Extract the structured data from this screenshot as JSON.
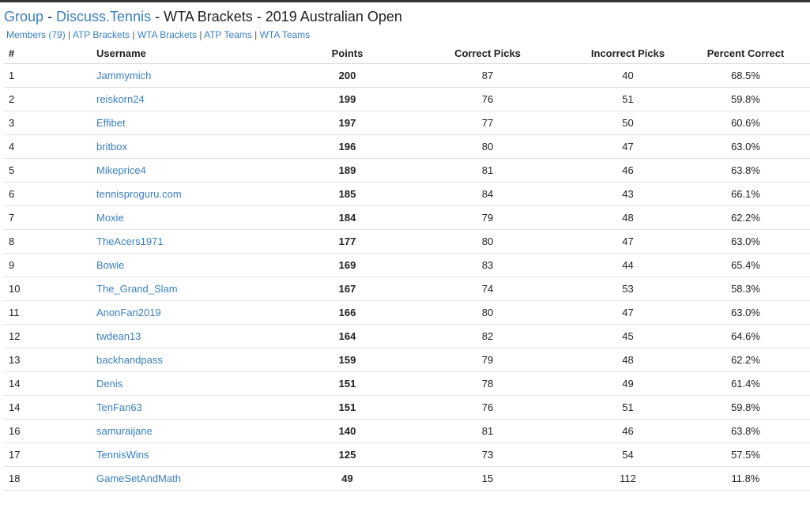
{
  "header": {
    "group_label": "Group",
    "sep1": " - ",
    "site_name": "Discuss.Tennis",
    "rest": " - WTA Brackets - 2019 Australian Open"
  },
  "subnav": {
    "links": [
      "Members (79)",
      "ATP Brackets",
      "WTA Brackets",
      "ATP Teams",
      "WTA Teams"
    ],
    "divider": " | "
  },
  "table": {
    "columns": [
      "#",
      "Username",
      "Points",
      "Correct Picks",
      "Incorrect Picks",
      "Percent Correct"
    ],
    "rows": [
      {
        "rank": "1",
        "username": "Jammymich",
        "points": "200",
        "correct": "87",
        "incorrect": "40",
        "percent": "68.5%"
      },
      {
        "rank": "2",
        "username": "reiskorn24",
        "points": "199",
        "correct": "76",
        "incorrect": "51",
        "percent": "59.8%"
      },
      {
        "rank": "3",
        "username": "Effibet",
        "points": "197",
        "correct": "77",
        "incorrect": "50",
        "percent": "60.6%"
      },
      {
        "rank": "4",
        "username": "britbox",
        "points": "196",
        "correct": "80",
        "incorrect": "47",
        "percent": "63.0%"
      },
      {
        "rank": "5",
        "username": "Mikeprice4",
        "points": "189",
        "correct": "81",
        "incorrect": "46",
        "percent": "63.8%"
      },
      {
        "rank": "6",
        "username": "tennisproguru.com",
        "points": "185",
        "correct": "84",
        "incorrect": "43",
        "percent": "66.1%"
      },
      {
        "rank": "7",
        "username": "Moxie",
        "points": "184",
        "correct": "79",
        "incorrect": "48",
        "percent": "62.2%"
      },
      {
        "rank": "8",
        "username": "TheAcers1971",
        "points": "177",
        "correct": "80",
        "incorrect": "47",
        "percent": "63.0%"
      },
      {
        "rank": "9",
        "username": "Bowie",
        "points": "169",
        "correct": "83",
        "incorrect": "44",
        "percent": "65.4%"
      },
      {
        "rank": "10",
        "username": "The_Grand_Slam",
        "points": "167",
        "correct": "74",
        "incorrect": "53",
        "percent": "58.3%"
      },
      {
        "rank": "11",
        "username": "AnonFan2019",
        "points": "166",
        "correct": "80",
        "incorrect": "47",
        "percent": "63.0%"
      },
      {
        "rank": "12",
        "username": "twdean13",
        "points": "164",
        "correct": "82",
        "incorrect": "45",
        "percent": "64.6%"
      },
      {
        "rank": "13",
        "username": "backhandpass",
        "points": "159",
        "correct": "79",
        "incorrect": "48",
        "percent": "62.2%"
      },
      {
        "rank": "14",
        "username": "Denis",
        "points": "151",
        "correct": "78",
        "incorrect": "49",
        "percent": "61.4%"
      },
      {
        "rank": "14",
        "username": "TenFan63",
        "points": "151",
        "correct": "76",
        "incorrect": "51",
        "percent": "59.8%"
      },
      {
        "rank": "16",
        "username": "samuraijane",
        "points": "140",
        "correct": "81",
        "incorrect": "46",
        "percent": "63.8%"
      },
      {
        "rank": "17",
        "username": "TennisWins",
        "points": "125",
        "correct": "73",
        "incorrect": "54",
        "percent": "57.5%"
      },
      {
        "rank": "18",
        "username": "GameSetAndMath",
        "points": "49",
        "correct": "15",
        "incorrect": "112",
        "percent": "11.8%"
      }
    ]
  },
  "colors": {
    "link": "#3a7fc1",
    "text": "#222222",
    "border": "#e3e3e3"
  }
}
